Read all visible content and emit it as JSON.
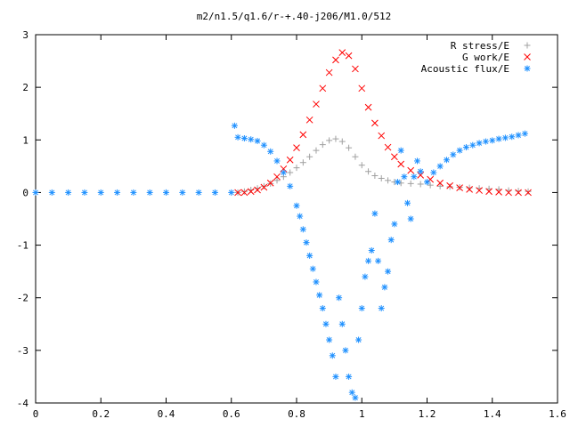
{
  "chart_data": {
    "type": "scatter",
    "title": "m2/n1.5/q1.6/r-+.40-j206/M1.0/512",
    "xlabel": "",
    "ylabel": "",
    "xlim": [
      0,
      1.6
    ],
    "ylim": [
      -4,
      3
    ],
    "xticks": [
      0,
      0.2,
      0.4,
      0.6,
      0.8,
      1,
      1.2,
      1.4,
      1.6
    ],
    "xtick_labels": [
      "0",
      "0.2",
      "0.4",
      "0.6",
      "0.8",
      "1",
      "1.2",
      "1.4",
      "1.6"
    ],
    "yticks": [
      -4,
      -3,
      -2,
      -1,
      0,
      1,
      2,
      3
    ],
    "ytick_labels": [
      "-4",
      "-3",
      "-2",
      "-1",
      "0",
      "1",
      "2",
      "3"
    ],
    "grid": false,
    "legend_position": "top-right",
    "series": [
      {
        "name": "R stress/E",
        "marker": "+",
        "color": "#a0a0a0",
        "points": [
          [
            0.62,
            0.0
          ],
          [
            0.64,
            0.02
          ],
          [
            0.66,
            0.05
          ],
          [
            0.68,
            0.08
          ],
          [
            0.7,
            0.12
          ],
          [
            0.72,
            0.17
          ],
          [
            0.74,
            0.23
          ],
          [
            0.76,
            0.3
          ],
          [
            0.78,
            0.38
          ],
          [
            0.8,
            0.47
          ],
          [
            0.82,
            0.57
          ],
          [
            0.84,
            0.68
          ],
          [
            0.86,
            0.8
          ],
          [
            0.88,
            0.91
          ],
          [
            0.9,
            0.99
          ],
          [
            0.92,
            1.02
          ],
          [
            0.94,
            0.97
          ],
          [
            0.96,
            0.85
          ],
          [
            0.98,
            0.68
          ],
          [
            1.0,
            0.52
          ],
          [
            1.02,
            0.4
          ],
          [
            1.04,
            0.32
          ],
          [
            1.06,
            0.27
          ],
          [
            1.08,
            0.23
          ],
          [
            1.1,
            0.2
          ],
          [
            1.12,
            0.18
          ],
          [
            1.15,
            0.17
          ],
          [
            1.18,
            0.16
          ],
          [
            1.21,
            0.14
          ],
          [
            1.24,
            0.12
          ],
          [
            1.27,
            0.11
          ],
          [
            1.3,
            0.1
          ],
          [
            1.33,
            0.09
          ],
          [
            1.36,
            0.08
          ],
          [
            1.39,
            0.07
          ],
          [
            1.42,
            0.06
          ],
          [
            1.45,
            0.04
          ],
          [
            1.48,
            0.03
          ],
          [
            1.51,
            0.02
          ]
        ]
      },
      {
        "name": "G work/E",
        "marker": "x",
        "color": "#ff0000",
        "points": [
          [
            0.62,
            0.0
          ],
          [
            0.64,
            0.0
          ],
          [
            0.66,
            0.02
          ],
          [
            0.68,
            0.05
          ],
          [
            0.7,
            0.1
          ],
          [
            0.72,
            0.18
          ],
          [
            0.74,
            0.3
          ],
          [
            0.76,
            0.45
          ],
          [
            0.78,
            0.62
          ],
          [
            0.8,
            0.85
          ],
          [
            0.82,
            1.1
          ],
          [
            0.84,
            1.38
          ],
          [
            0.86,
            1.68
          ],
          [
            0.88,
            1.98
          ],
          [
            0.9,
            2.28
          ],
          [
            0.92,
            2.52
          ],
          [
            0.94,
            2.66
          ],
          [
            0.96,
            2.6
          ],
          [
            0.98,
            2.35
          ],
          [
            1.0,
            1.98
          ],
          [
            1.02,
            1.62
          ],
          [
            1.04,
            1.32
          ],
          [
            1.06,
            1.08
          ],
          [
            1.08,
            0.86
          ],
          [
            1.1,
            0.68
          ],
          [
            1.12,
            0.54
          ],
          [
            1.15,
            0.42
          ],
          [
            1.18,
            0.33
          ],
          [
            1.21,
            0.25
          ],
          [
            1.24,
            0.18
          ],
          [
            1.27,
            0.13
          ],
          [
            1.3,
            0.09
          ],
          [
            1.33,
            0.06
          ],
          [
            1.36,
            0.04
          ],
          [
            1.39,
            0.02
          ],
          [
            1.42,
            0.01
          ],
          [
            1.45,
            0.0
          ],
          [
            1.48,
            0.0
          ],
          [
            1.51,
            0.0
          ]
        ]
      },
      {
        "name": "Acoustic flux/E",
        "marker": "*",
        "color": "#1e90ff",
        "points": [
          [
            0.0,
            0.0
          ],
          [
            0.05,
            0.0
          ],
          [
            0.1,
            0.0
          ],
          [
            0.15,
            0.0
          ],
          [
            0.2,
            0.0
          ],
          [
            0.25,
            0.0
          ],
          [
            0.3,
            0.0
          ],
          [
            0.35,
            0.0
          ],
          [
            0.4,
            0.0
          ],
          [
            0.45,
            0.0
          ],
          [
            0.5,
            0.0
          ],
          [
            0.55,
            0.0
          ],
          [
            0.6,
            0.0
          ],
          [
            0.61,
            1.27
          ],
          [
            0.62,
            1.05
          ],
          [
            0.64,
            1.03
          ],
          [
            0.66,
            1.01
          ],
          [
            0.68,
            0.98
          ],
          [
            0.7,
            0.9
          ],
          [
            0.72,
            0.78
          ],
          [
            0.74,
            0.6
          ],
          [
            0.76,
            0.38
          ],
          [
            0.78,
            0.12
          ],
          [
            0.8,
            -0.25
          ],
          [
            0.81,
            -0.45
          ],
          [
            0.82,
            -0.7
          ],
          [
            0.83,
            -0.95
          ],
          [
            0.84,
            -1.2
          ],
          [
            0.85,
            -1.45
          ],
          [
            0.86,
            -1.7
          ],
          [
            0.87,
            -1.95
          ],
          [
            0.88,
            -2.2
          ],
          [
            0.89,
            -2.5
          ],
          [
            0.9,
            -2.8
          ],
          [
            0.91,
            -3.1
          ],
          [
            0.92,
            -3.5
          ],
          [
            0.93,
            -2.0
          ],
          [
            0.94,
            -2.5
          ],
          [
            0.95,
            -3.0
          ],
          [
            0.96,
            -3.5
          ],
          [
            0.97,
            -3.8
          ],
          [
            0.98,
            -3.9
          ],
          [
            0.99,
            -2.8
          ],
          [
            1.0,
            -2.2
          ],
          [
            1.01,
            -1.6
          ],
          [
            1.02,
            -1.3
          ],
          [
            1.03,
            -1.1
          ],
          [
            1.04,
            -0.4
          ],
          [
            1.05,
            -1.3
          ],
          [
            1.06,
            -2.2
          ],
          [
            1.07,
            -1.8
          ],
          [
            1.08,
            -1.5
          ],
          [
            1.09,
            -0.9
          ],
          [
            1.1,
            -0.6
          ],
          [
            1.11,
            0.2
          ],
          [
            1.12,
            0.8
          ],
          [
            1.13,
            0.3
          ],
          [
            1.14,
            -0.2
          ],
          [
            1.15,
            -0.5
          ],
          [
            1.16,
            0.3
          ],
          [
            1.17,
            0.6
          ],
          [
            1.18,
            0.4
          ],
          [
            1.2,
            0.2
          ],
          [
            1.22,
            0.38
          ],
          [
            1.24,
            0.5
          ],
          [
            1.26,
            0.62
          ],
          [
            1.28,
            0.72
          ],
          [
            1.3,
            0.8
          ],
          [
            1.32,
            0.86
          ],
          [
            1.34,
            0.9
          ],
          [
            1.36,
            0.94
          ],
          [
            1.38,
            0.97
          ],
          [
            1.4,
            0.99
          ],
          [
            1.42,
            1.02
          ],
          [
            1.44,
            1.04
          ],
          [
            1.46,
            1.06
          ],
          [
            1.48,
            1.09
          ],
          [
            1.5,
            1.12
          ]
        ]
      }
    ]
  }
}
